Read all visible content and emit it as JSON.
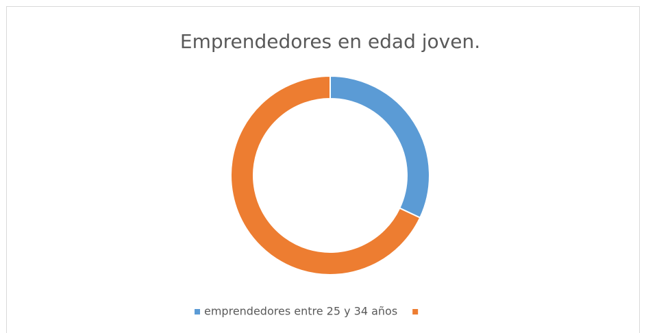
{
  "chart_data": {
    "type": "donut",
    "title": "Emprendedores en edad joven.",
    "categories": [
      "emprendedores entre 25 y 34 años",
      null
    ],
    "values": [
      32,
      68
    ],
    "colors": [
      "#5b9bd5",
      "#ed7d31"
    ],
    "legend": "bottom"
  }
}
